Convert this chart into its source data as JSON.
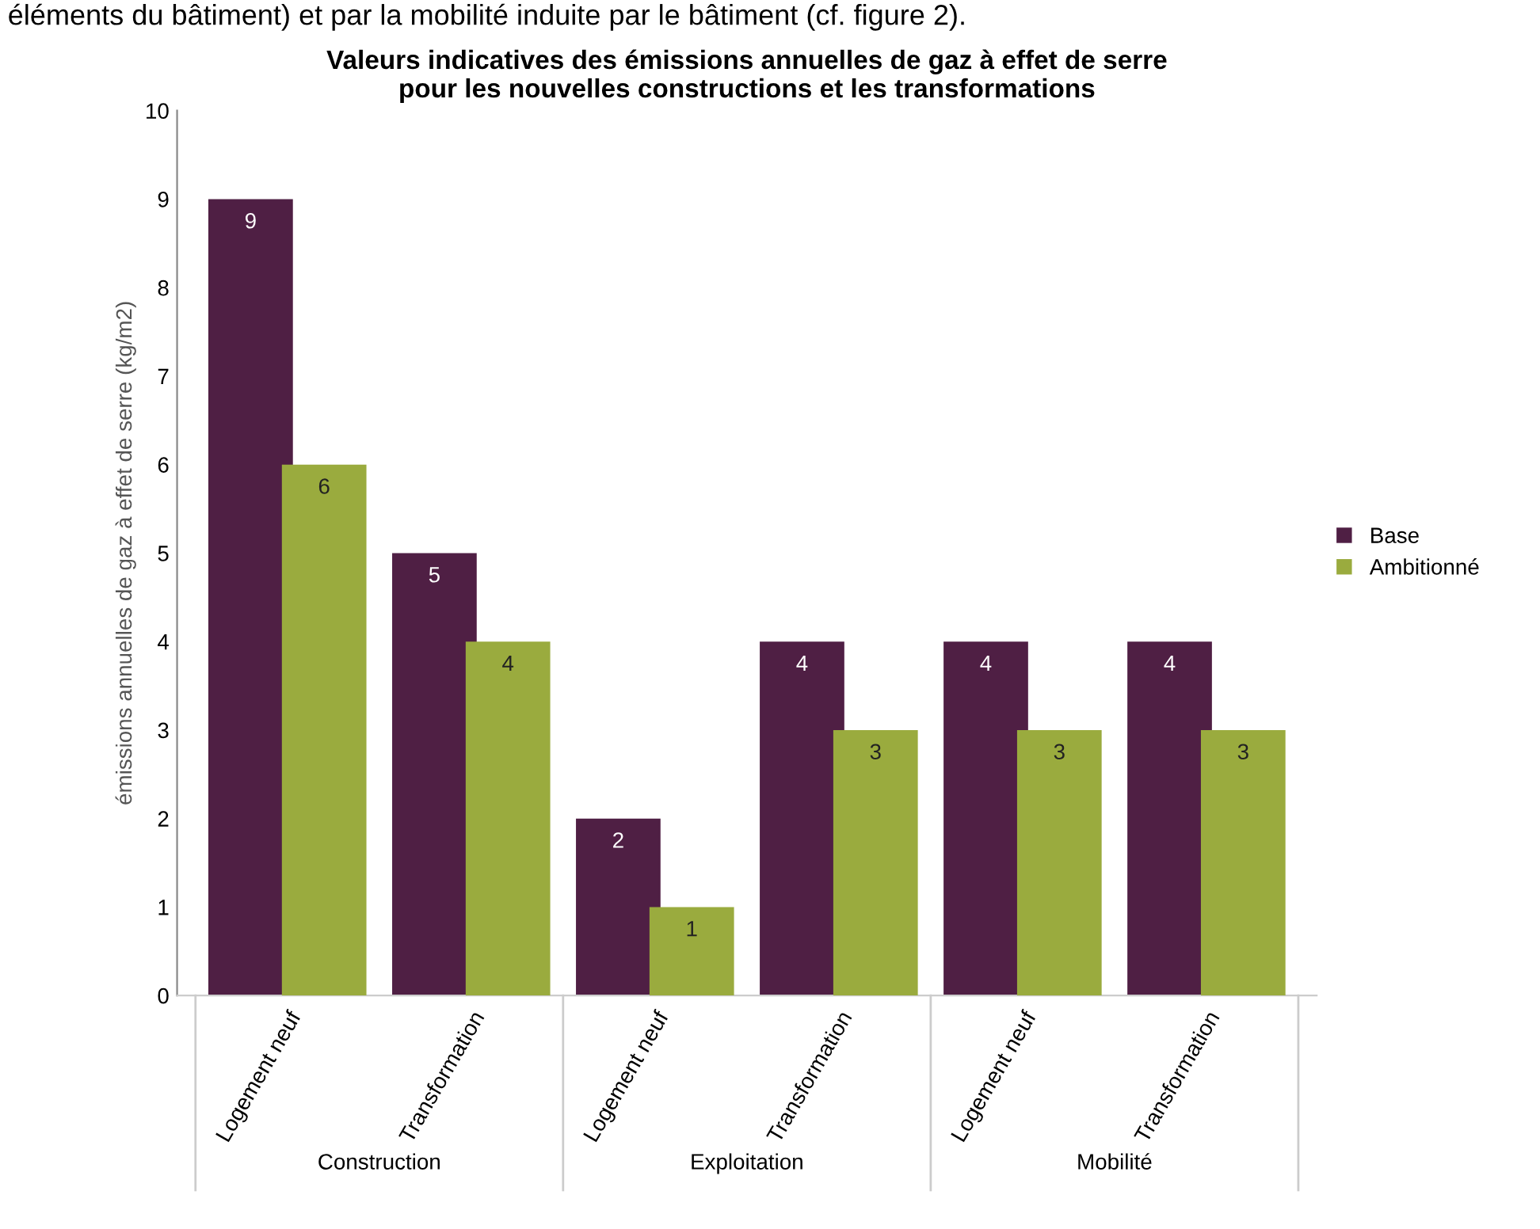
{
  "chart_data": {
    "type": "bar",
    "title": "Valeurs indicatives des émissions annuelles de gaz à effet de serre\npour les nouvelles constructions et les transformations",
    "ylabel": "émissions annuelles de gaz à effet de serre (kg/m2)",
    "categories": [
      "Logement neuf",
      "Transformation",
      "Logement neuf",
      "Transformation",
      "Logement neuf",
      "Transformation"
    ],
    "series": [
      {
        "name": "Base",
        "color": "#4f1f44",
        "values": [
          9,
          5,
          2,
          4,
          4,
          4
        ]
      },
      {
        "name": "Ambitionné",
        "color": "#9aab3e",
        "values": [
          6,
          4,
          1,
          3,
          3,
          3
        ]
      }
    ],
    "ylim": [
      0,
      10
    ],
    "yticks": [
      0,
      1,
      2,
      3,
      4,
      5,
      6,
      7,
      8,
      9,
      10
    ],
    "data_labels": true,
    "grid": false,
    "legend": "right",
    "annotations": [
      "éléments du bâtiment) et par la mobilité induite par le bâtiment (cf. figure 2).",
      "Construction",
      "Exploitation",
      "Mobilité"
    ]
  }
}
